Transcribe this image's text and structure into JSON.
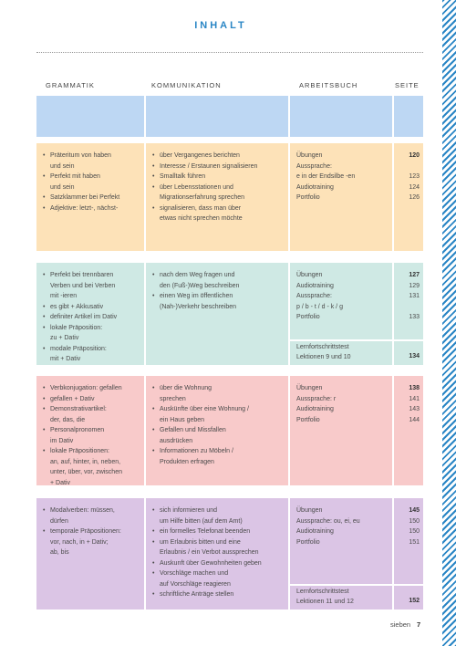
{
  "header": {
    "title": "INHALT",
    "columns": [
      "GRAMMATIK",
      "KOMMUNIKATION",
      "ARBEITSBUCH",
      "SEITE"
    ]
  },
  "sections": [
    {
      "grammatik": [
        [
          "Präteritum von haben",
          "und sein"
        ],
        [
          "Perfekt mit haben",
          "und sein"
        ],
        [
          "Satzklammer bei Perfekt"
        ],
        [
          "Adjektive: letzt-, nächst-"
        ]
      ],
      "kommunikation": [
        [
          "über Vergangenes berichten"
        ],
        [
          "Interesse / Erstaunen signalisieren"
        ],
        [
          "Smalltalk führen"
        ],
        [
          "über Lebensstationen und",
          "Migrationserfahrung sprechen"
        ],
        [
          "signalisieren, dass man über",
          "etwas nicht sprechen möchte"
        ]
      ],
      "arbeitsbuch": [
        {
          "text": "Übungen",
          "seite": "120"
        },
        {
          "text": "Aussprache:"
        },
        {
          "text": "e in der Endsilbe -en",
          "seite": "123"
        },
        {
          "text": "Audiotraining",
          "seite": "124"
        },
        {
          "text": "Portfolio",
          "seite": "126"
        }
      ]
    },
    {
      "grammatik": [
        [
          "Perfekt bei trennbaren",
          "Verben und bei Verben",
          "mit -ieren"
        ],
        [
          "es gibt + Akkusativ"
        ],
        [
          "definiter Artikel im Dativ"
        ],
        [
          "lokale Präposition:",
          "zu + Dativ"
        ],
        [
          "modale Präposition:",
          "mit + Dativ"
        ]
      ],
      "kommunikation": [
        [
          "nach dem Weg fragen und",
          "den (Fuß-)Weg beschreiben"
        ],
        [
          "einen Weg im öffentlichen",
          "(Nah-)Verkehr beschreiben"
        ]
      ],
      "arbeitsbuch": [
        {
          "text": "Übungen",
          "seite": "127"
        },
        {
          "text": "Audiotraining",
          "seite": "129"
        },
        {
          "text": "Aussprache:",
          "seite": "131"
        },
        {
          "text": "p / b - t / d - k / g"
        },
        {
          "text": "Portfolio",
          "seite": "133"
        }
      ],
      "test": {
        "lines": [
          "Lernfortschrittstest",
          "Lektionen 9 und 10"
        ],
        "seite": "134"
      }
    },
    {
      "grammatik": [
        [
          "Verbkonjugation: gefallen"
        ],
        [
          "gefallen + Dativ"
        ],
        [
          "Demonstrativartikel:",
          "der, das, die"
        ],
        [
          "Personalpronomen",
          "im Dativ"
        ],
        [
          "lokale Präpositionen:",
          "an, auf, hinter, in, neben,",
          "unter, über, vor, zwischen",
          "+ Dativ"
        ]
      ],
      "kommunikation": [
        [
          "über die Wohnung",
          "sprechen"
        ],
        [
          "Auskünfte über eine Wohnung /",
          "ein Haus geben"
        ],
        [
          "Gefallen und Missfallen",
          "ausdrücken"
        ],
        [
          "Informationen zu Möbeln /",
          "Produkten erfragen"
        ]
      ],
      "arbeitsbuch": [
        {
          "text": "Übungen",
          "seite": "138"
        },
        {
          "text": "Aussprache: r",
          "seite": "141"
        },
        {
          "text": "Audiotraining",
          "seite": "143"
        },
        {
          "text": "Portfolio",
          "seite": "144"
        }
      ]
    },
    {
      "grammatik": [
        [
          "Modalverben: müssen,",
          "dürfen"
        ],
        [
          "temporale Präpositionen:",
          "vor, nach, in + Dativ;",
          "ab, bis"
        ]
      ],
      "kommunikation": [
        [
          "sich informieren und",
          "um Hilfe bitten (auf dem Amt)"
        ],
        [
          "ein formelles Telefonat beenden"
        ],
        [
          "um Erlaubnis bitten und eine",
          "Erlaubnis / ein Verbot aussprechen"
        ],
        [
          "Auskunft über Gewohnheiten geben"
        ],
        [
          "Vorschläge machen und",
          "auf Vorschläge reagieren"
        ],
        [
          "schriftliche Anträge stellen"
        ]
      ],
      "arbeitsbuch": [
        {
          "text": "Übungen",
          "seite": "145"
        },
        {
          "text": "Aussprache: ou, ei, eu",
          "seite": "150"
        },
        {
          "text": "Audiotraining",
          "seite": "150"
        },
        {
          "text": "Portfolio",
          "seite": "151"
        }
      ],
      "test": {
        "lines": [
          "Lernfortschrittstest",
          "Lektionen 11 und 12"
        ],
        "seite": "152"
      }
    }
  ],
  "footer": {
    "word": "sieben",
    "page": "7"
  }
}
